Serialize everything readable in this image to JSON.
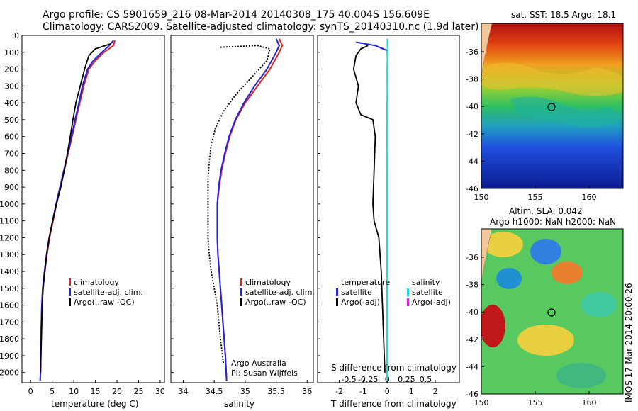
{
  "title": {
    "line1": "Argo profile: CS 5901659_216 08-Mar-2014 20140308_175 40.004S 156.609E",
    "line2": "Climatology: CARS2009. Satellite-adjusted climatology: synTS_20140310.nc (1.9d later)"
  },
  "colors": {
    "climatology": "#dd2222",
    "satellite": "#2222dd",
    "argo": "#000000",
    "sal_satellite": "#22dddd",
    "sal_argo": "#dd22dd"
  },
  "panels": {
    "temperature": {
      "xlabel": "temperature (deg C)",
      "xlim": [
        -2,
        31
      ],
      "xticks": [
        "0",
        "5",
        "10",
        "15",
        "20",
        "25",
        "30"
      ],
      "legend": [
        "climatology",
        "satellite-adj. clim.",
        "Argo(..raw -QC)"
      ]
    },
    "salinity": {
      "xlabel": "salinity",
      "xlim": [
        33.8,
        36.1
      ],
      "xticks": [
        "34",
        "34.5",
        "35",
        "35.5",
        "36"
      ],
      "legend": [
        "climatology",
        "satellite-adj. clim.",
        "Argo(..raw -QC)"
      ],
      "credit1": "Argo Australia",
      "credit2": "PI: Susan Wijffels"
    },
    "difference": {
      "xlabel": "T difference from climatology",
      "xlabel_top": "S difference from climatology",
      "xticks": [
        "-2",
        "-1",
        "0",
        "1",
        "2"
      ],
      "sticks": [
        "-0.5",
        "-0.25",
        "0",
        "0.25",
        "0.5"
      ],
      "legend_temp_title": "temperature",
      "legend_sal_title": "salinity",
      "legend_temp": [
        "satellite",
        "Argo(-adj)"
      ],
      "legend_sal": [
        "satellite",
        "Argo(-adj)"
      ]
    },
    "sst_map": {
      "title": "sat. SST: 18.5 Argo: 18.1",
      "xticks": [
        "150",
        "155",
        "160"
      ],
      "yticks": [
        "-36",
        "-38",
        "-40",
        "-42",
        "-44",
        "-46"
      ]
    },
    "sla_map": {
      "title1": "Altim. SLA: 0.042",
      "title2": "Argo h1000: NaN h2000: NaN",
      "xticks": [
        "150",
        "155",
        "160"
      ],
      "yticks": [
        "-36",
        "-38",
        "-40",
        "-42",
        "-44",
        "-46"
      ]
    }
  },
  "depth_ticks": [
    "0",
    "100",
    "200",
    "300",
    "400",
    "500",
    "600",
    "700",
    "800",
    "900",
    "1000",
    "1100",
    "1200",
    "1300",
    "1400",
    "1500",
    "1600",
    "1700",
    "1800",
    "1900",
    "2000"
  ],
  "watermark": "IMOS 17-Mar-2014 20:00:26",
  "chart_data": {
    "type": "line",
    "y_axis": "pressure (dbar), increasing downward",
    "ylim": [
      0,
      2060
    ],
    "series": [
      {
        "name": "climatology",
        "panel": "temperature",
        "x": [
          19.5,
          19.2,
          17,
          15,
          13.5,
          12.3,
          11.4,
          10.5,
          9.6,
          8.7,
          7.8,
          6.9,
          6.0,
          5.2,
          4.4,
          3.8,
          3.3,
          2.9,
          2.6,
          2.4,
          2.3,
          2.2
        ],
        "y": [
          30,
          60,
          100,
          150,
          200,
          300,
          400,
          500,
          600,
          700,
          800,
          900,
          1000,
          1100,
          1200,
          1300,
          1400,
          1500,
          1600,
          1800,
          2000,
          2050
        ]
      },
      {
        "name": "satellite-adj. clim.",
        "panel": "temperature",
        "x": [
          19.2,
          18.2,
          16.5,
          14.5,
          13.2,
          12.0,
          11.2,
          10.3,
          9.5,
          8.6,
          7.7,
          6.8,
          5.9,
          5.1,
          4.3,
          3.7,
          3.2,
          2.8,
          2.6,
          2.4,
          2.3,
          2.2
        ],
        "y": [
          30,
          60,
          100,
          150,
          200,
          300,
          400,
          500,
          600,
          700,
          800,
          900,
          1000,
          1100,
          1200,
          1300,
          1400,
          1500,
          1600,
          1800,
          2000,
          2050
        ]
      },
      {
        "name": "Argo(..raw -QC)",
        "panel": "temperature",
        "x": [
          18.5,
          15,
          13.5,
          12.5,
          11.5,
          10.5,
          9.8,
          9.2,
          8.5,
          7.8,
          7.0,
          6.0,
          5.1,
          4.3,
          3.7,
          3.3,
          2.9,
          2.7,
          2.5,
          2.3
        ],
        "y": [
          50,
          80,
          120,
          200,
          300,
          400,
          500,
          600,
          700,
          800,
          900,
          1000,
          1100,
          1200,
          1300,
          1400,
          1500,
          1600,
          1800,
          2000
        ]
      },
      {
        "name": "climatology",
        "panel": "salinity",
        "x": [
          35.55,
          35.6,
          35.55,
          35.4,
          35.2,
          35.0,
          34.85,
          34.75,
          34.68,
          34.62,
          34.58,
          34.55,
          34.55,
          34.56,
          34.58,
          34.6,
          34.62,
          34.64,
          34.66,
          34.68,
          34.7
        ],
        "y": [
          20,
          60,
          100,
          200,
          300,
          400,
          500,
          600,
          700,
          800,
          900,
          1000,
          1200,
          1300,
          1400,
          1500,
          1600,
          1700,
          1800,
          1900,
          2050
        ]
      },
      {
        "name": "satellite-adj. clim.",
        "panel": "salinity",
        "x": [
          35.5,
          35.55,
          35.5,
          35.35,
          35.15,
          34.98,
          34.84,
          34.74,
          34.67,
          34.61,
          34.57,
          34.55,
          34.55,
          34.56,
          34.58,
          34.6,
          34.62,
          34.64,
          34.66,
          34.68,
          34.7
        ],
        "y": [
          20,
          60,
          100,
          200,
          300,
          400,
          500,
          600,
          700,
          800,
          900,
          1000,
          1200,
          1300,
          1400,
          1500,
          1600,
          1700,
          1800,
          1900,
          2050
        ]
      },
      {
        "name": "Argo(..raw -QC)",
        "panel": "salinity",
        "x": [
          34.6,
          35.2,
          35.4,
          35.35,
          35.1,
          34.85,
          34.65,
          34.52,
          34.45,
          34.42,
          34.4,
          34.4,
          34.4,
          34.42,
          34.45,
          34.5,
          34.55,
          34.6,
          34.65
        ],
        "y": [
          70,
          60,
          80,
          150,
          250,
          350,
          450,
          550,
          650,
          750,
          850,
          1000,
          1200,
          1300,
          1400,
          1500,
          1600,
          1800,
          1950
        ]
      },
      {
        "name": "satellite (T diff)",
        "panel": "difference",
        "x": [
          -1.3,
          -0.5,
          0.0,
          0.02,
          0.0,
          0.0,
          0.0,
          0.0,
          0.0,
          0.0
        ],
        "y": [
          40,
          60,
          90,
          200,
          400,
          800,
          1200,
          1600,
          2000,
          2050
        ]
      },
      {
        "name": "Argo(-adj) (T diff)",
        "panel": "difference",
        "x": [
          -0.8,
          -1.1,
          -1.3,
          -1.4,
          -1.2,
          -1.3,
          -1.1,
          -0.6,
          -0.5,
          -0.55,
          -0.6,
          -0.55,
          -0.35,
          -0.25,
          -0.2,
          -0.15,
          -0.1
        ],
        "y": [
          60,
          80,
          120,
          200,
          300,
          400,
          470,
          500,
          600,
          800,
          1000,
          1100,
          1200,
          1400,
          1600,
          1800,
          2000
        ]
      },
      {
        "name": "satellite (S diff)",
        "panel": "difference",
        "x": [
          0.01,
          0.02,
          0.0,
          0.01,
          0.0,
          0.0,
          0.0,
          0.0
        ],
        "y": [
          20,
          100,
          200,
          500,
          900,
          1300,
          1700,
          2050
        ]
      }
    ]
  }
}
